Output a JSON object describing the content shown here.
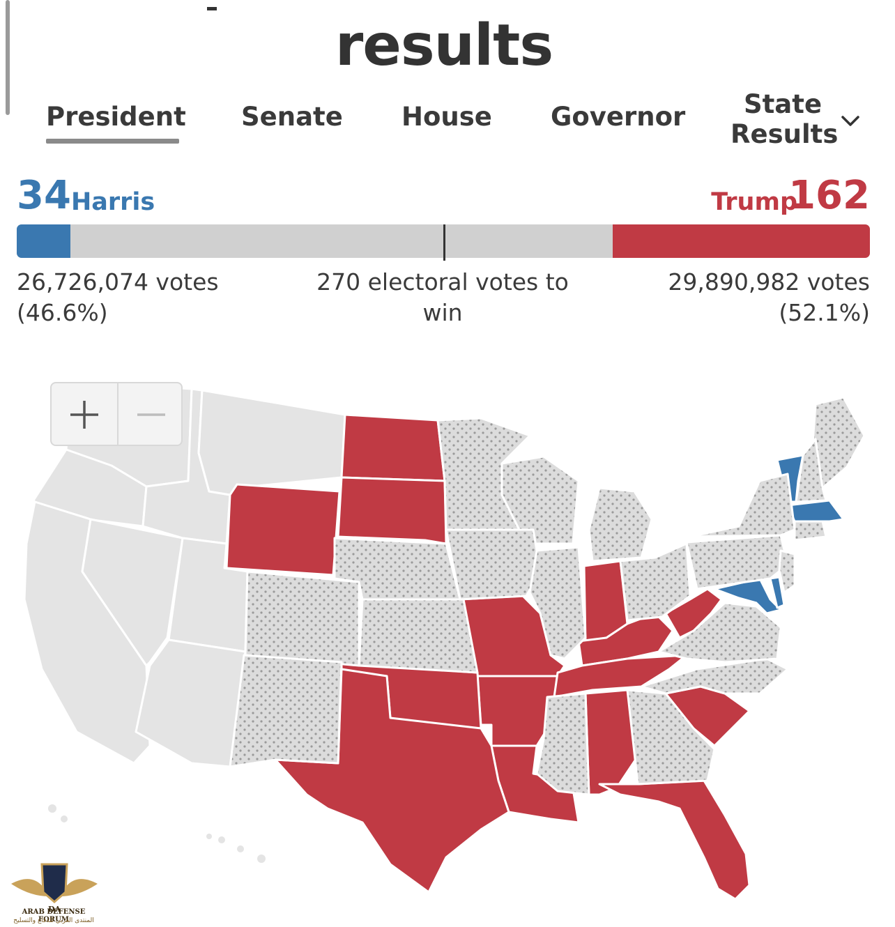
{
  "page": {
    "title": "results"
  },
  "tabs": [
    {
      "label": "President",
      "active": true
    },
    {
      "label": "Senate"
    },
    {
      "label": "House"
    },
    {
      "label": "Governor"
    }
  ],
  "state_results": {
    "label": "State Results"
  },
  "harris": {
    "name": "Harris",
    "electoral": "34",
    "votes": "26,726,074 votes",
    "pct": "(46.6%)",
    "color": "#3a78b0"
  },
  "trump": {
    "name": "Trump",
    "electoral": "162",
    "votes": "29,890,982 votes",
    "pct": "(52.1%)",
    "color": "#c03a44"
  },
  "threshold": {
    "text": "270 electoral votes to win",
    "total_electoral": 538
  },
  "map": {
    "colors": {
      "dem": "#3a78b0",
      "rep": "#c03a44",
      "pending": "#dcdcdc",
      "no_results": "#e4e4e4"
    },
    "states_rep": [
      "ND",
      "SD",
      "WY",
      "MO",
      "AR",
      "LA",
      "OK",
      "TX",
      "IN",
      "KY",
      "WV",
      "TN",
      "AL",
      "FL",
      "SC"
    ],
    "states_dem": [
      "VT",
      "MA",
      "MD",
      "DE",
      "RI"
    ],
    "states_pending": [
      "MN",
      "IA",
      "IL",
      "WI",
      "MI",
      "OH",
      "NE",
      "KS",
      "CO",
      "NM",
      "MS",
      "GA",
      "NC",
      "VA",
      "PA",
      "NY",
      "NJ",
      "ME",
      "NH",
      "CT"
    ],
    "zoom_in_icon": "plus-icon",
    "zoom_out_icon": "minus-icon"
  },
  "watermark": {
    "text": "ARAB DEFENSE FORUM",
    "text_ar": "المنتدى العربي للدفاع والتسليح",
    "badge": "DA"
  }
}
